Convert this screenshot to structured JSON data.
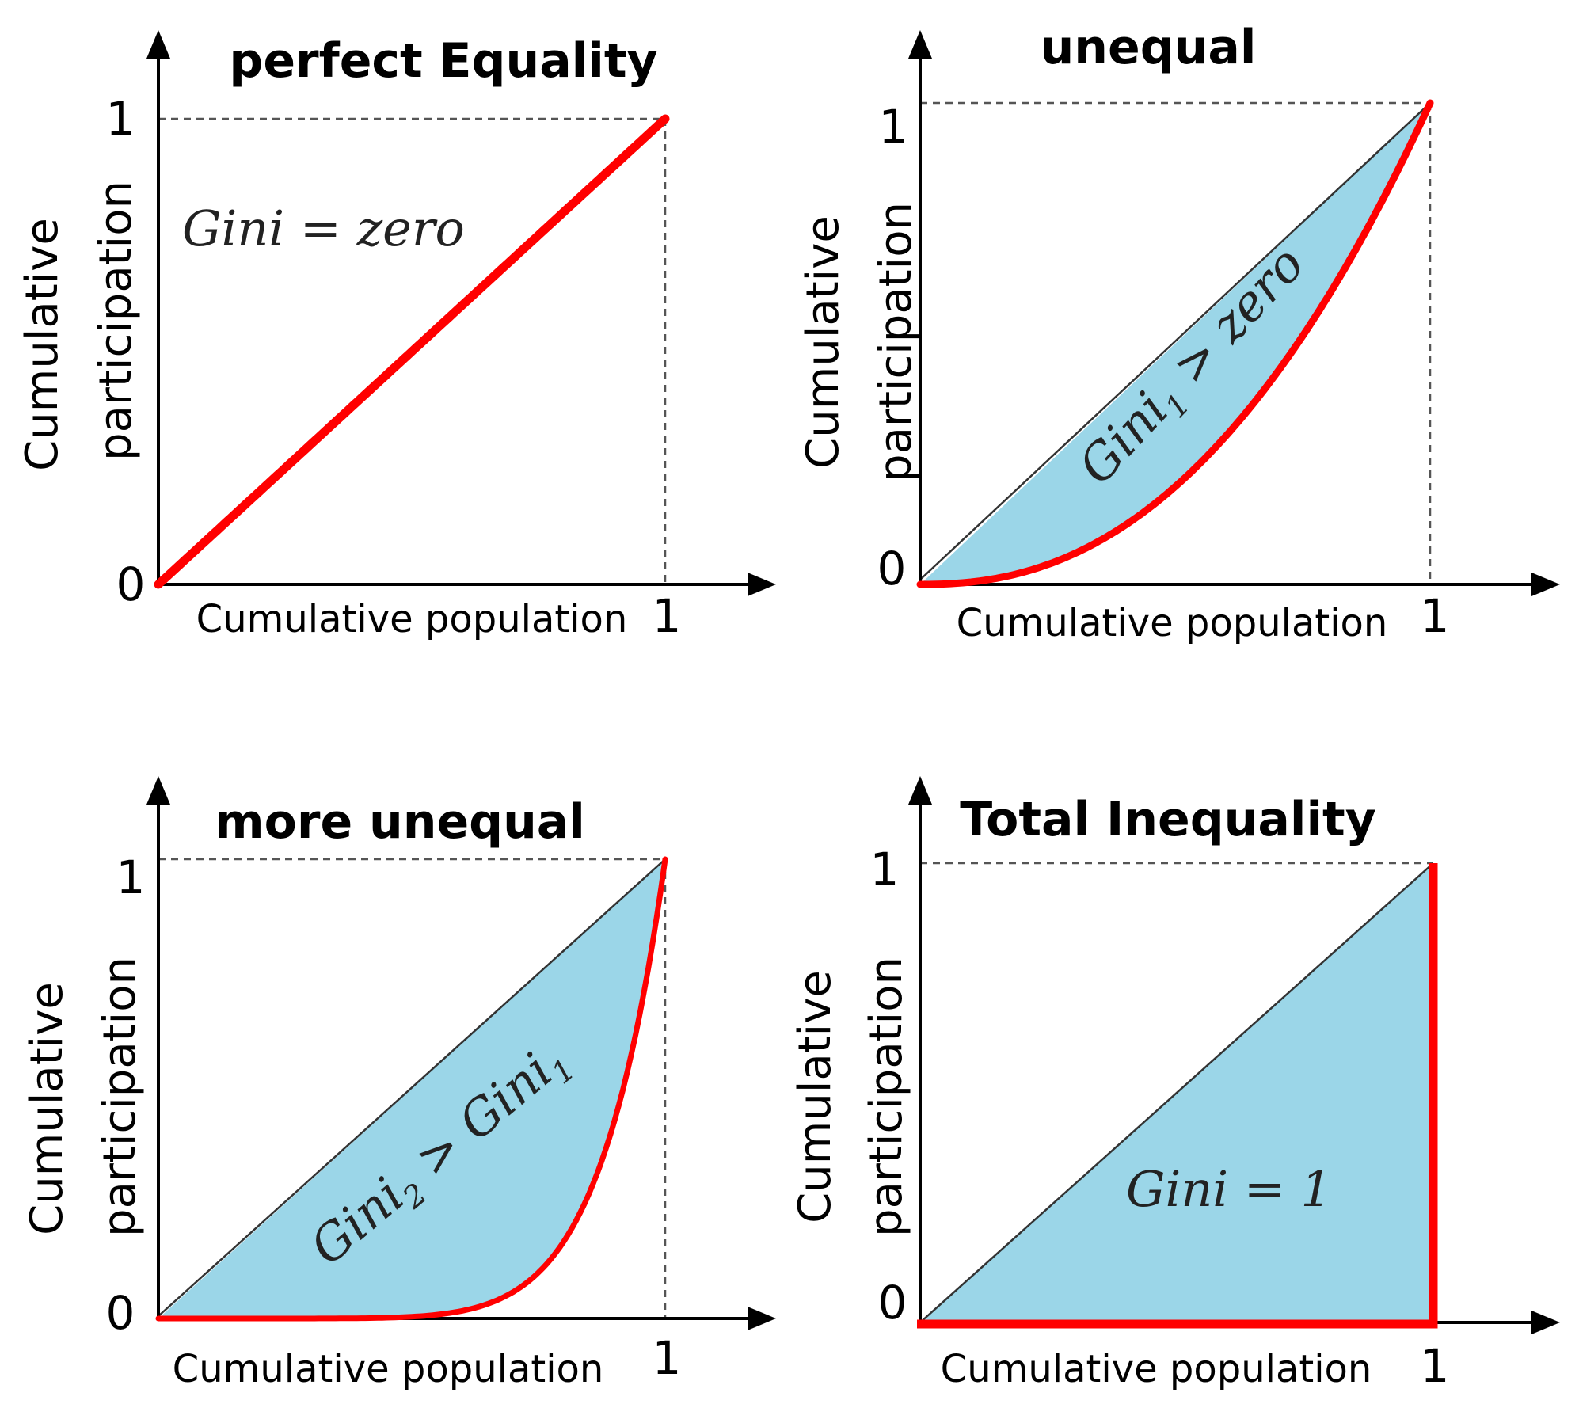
{
  "colors": {
    "curve": "#ff0000",
    "fill": "#9bd6e8",
    "axis": "#000000",
    "diagonal": "#333333",
    "dashed": "#555555"
  },
  "panels": [
    {
      "title": "perfect Equality",
      "ylabel_line1": "Cumulative",
      "ylabel_line2": "participation",
      "xlabel": "Cumulative population",
      "tick_zero": "0",
      "tick_y_one": "1",
      "tick_x_one": "1",
      "annotation": "Gini = zero",
      "curve_exponent": 1
    },
    {
      "title": "unequal",
      "ylabel_line1": "Cumulative",
      "ylabel_line2": "participation",
      "xlabel": "Cumulative population",
      "tick_zero": "0",
      "tick_y_one": "1",
      "tick_x_one": "1",
      "annotation_main": "Gini",
      "annotation_sub": "1",
      "annotation_rest": " > zero",
      "curve_exponent": 2.3
    },
    {
      "title": "more unequal",
      "ylabel_line1": "Cumulative",
      "ylabel_line2": "participation",
      "xlabel": "Cumulative population",
      "tick_zero": "0",
      "tick_y_one": "1",
      "tick_x_one": "1",
      "annotation_main": "Gini",
      "annotation_sub": "2",
      "annotation_rest": " > ",
      "annotation_main2": "Gini",
      "annotation_sub2": "1",
      "curve_exponent": 8
    },
    {
      "title": "Total Inequality",
      "ylabel_line1": "Cumulative",
      "ylabel_line2": "participation",
      "xlabel": "Cumulative population",
      "tick_zero": "0",
      "tick_y_one": "1",
      "tick_x_one": "1",
      "annotation": "Gini = 1",
      "curve_exponent": null
    }
  ]
}
